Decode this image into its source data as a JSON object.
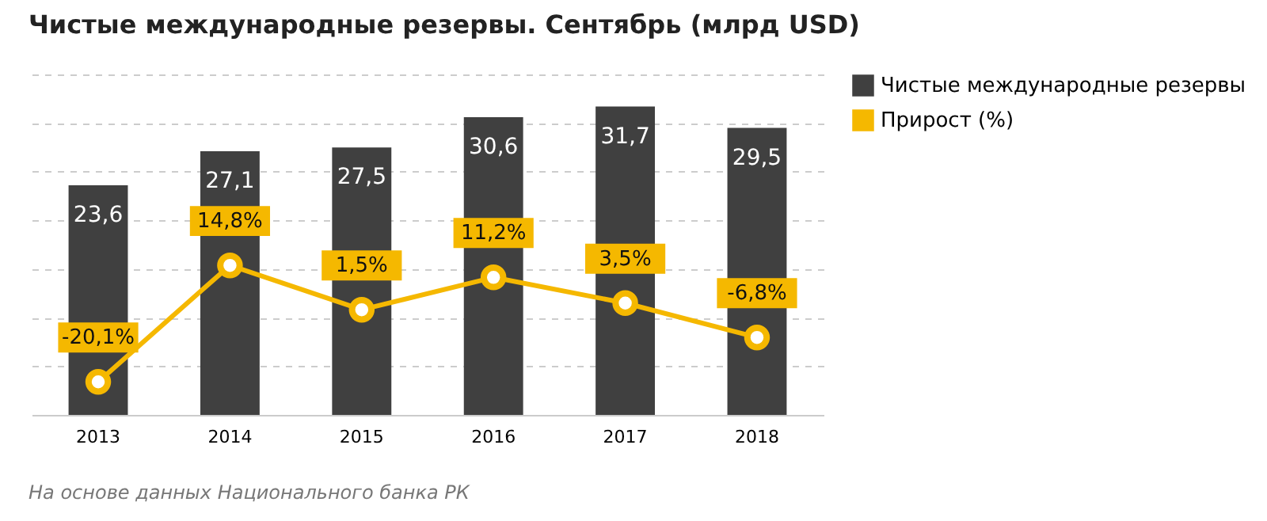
{
  "chart_data": {
    "type": "bar",
    "title": "Чистые международные резервы. Сентябрь (млрд USD)",
    "categories": [
      "2013",
      "2014",
      "2015",
      "2016",
      "2017",
      "2018"
    ],
    "series": [
      {
        "name": "Чистые международные резервы",
        "color": "#404040",
        "values": [
          23.6,
          27.1,
          27.5,
          30.6,
          31.7,
          29.5
        ],
        "value_labels": [
          "23,6",
          "27,1",
          "27,5",
          "30,6",
          "31,7",
          "29,5"
        ]
      },
      {
        "name": "Прирост (%)",
        "type": "line",
        "axis": "y2",
        "color": "#f5b800",
        "marker": "circle",
        "values": [
          -20.1,
          14.8,
          1.5,
          11.2,
          3.5,
          -6.8
        ],
        "value_labels": [
          "-20,1%",
          "14,8%",
          "1,5%",
          "11,2%",
          "3,5%",
          "-6,8%"
        ]
      }
    ],
    "ylim": [
      0,
      35
    ],
    "y2lim": [
      -30,
      72
    ],
    "grid": "y",
    "legend": "right",
    "annotations": [
      "На основе данных Национального банка РК"
    ]
  }
}
